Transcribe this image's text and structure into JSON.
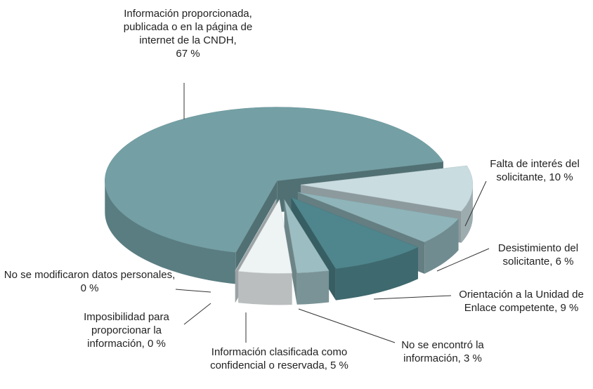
{
  "chart_data": {
    "type": "pie3d",
    "categories": [
      "Información proporcionada, publicada o en la página de internet de la CNDH",
      "Falta de interés del solicitante",
      "Desistimiento del solicitante",
      "Orientación a la Unidad de Enlace competente",
      "No se encontró la información",
      "Información clasificada como confidencial o reservada",
      "Imposibilidad para proporcionar la información",
      "No se modificaron datos personales"
    ],
    "values": [
      67,
      10,
      6,
      9,
      3,
      5,
      0,
      0
    ],
    "value_labels": [
      "67 %",
      "10 %",
      "6 %",
      "9 %",
      "3 %",
      "5 %",
      "0 %",
      "0 %"
    ],
    "colors": [
      "#74a0a5",
      "#c9dce0",
      "#8fb4b9",
      "#4f868d",
      "#9cbdc1",
      "#eef3f4",
      "#dfe9eb",
      "#dfe9eb"
    ]
  }
}
